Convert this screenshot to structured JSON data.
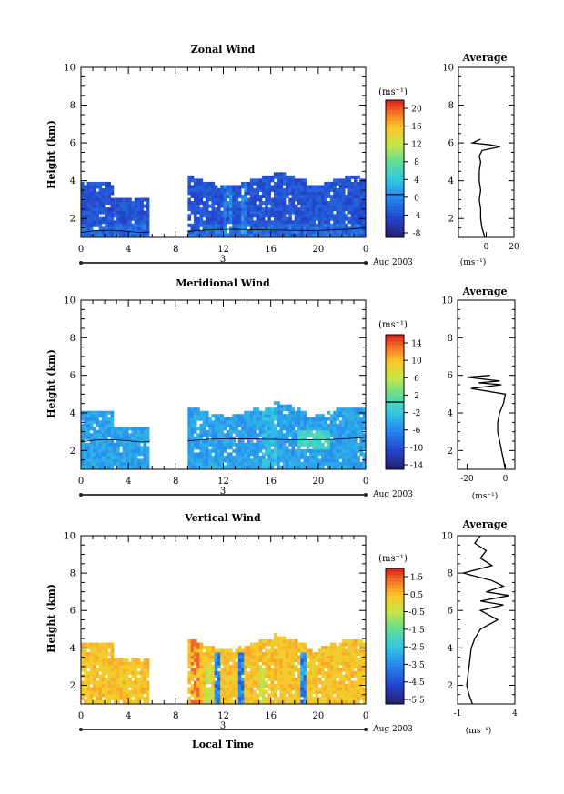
{
  "figure": {
    "x_title": "Local Time",
    "x_ticks": [
      "0",
      "4",
      "8",
      "12",
      "16",
      "20",
      "0"
    ],
    "day_label": "3",
    "date_label": "Aug 2003"
  },
  "chart_data": [
    {
      "type": "heatmap",
      "name": "zonal",
      "title": "Zonal Wind",
      "ylabel": "Height (km)",
      "unit": "(ms⁻¹)",
      "xlim": [
        0,
        24
      ],
      "ylim": [
        1,
        10
      ],
      "yticks": [
        2,
        4,
        6,
        8,
        10
      ],
      "colorbar_ticks": [
        "20",
        "16",
        "12",
        "8",
        "4",
        "0",
        "-4",
        "-8"
      ],
      "colorbar_range": [
        -10,
        22
      ],
      "contour_level": 0,
      "data_gaps_hours": [
        [
          5.8,
          8.9
        ]
      ],
      "coverage_top_km": 3.9,
      "average_profile": {
        "title": "Average",
        "xlim": [
          -20,
          20
        ],
        "xticks": [
          "0",
          "20"
        ],
        "xlabel": "(ms⁻¹)",
        "heights": [
          1.0,
          1.5,
          2.0,
          2.5,
          3.0,
          3.5,
          4.0,
          4.5,
          5.0,
          5.3,
          5.6,
          5.8,
          5.9,
          6.0,
          6.2
        ],
        "values": [
          -1,
          -3,
          -4,
          -4,
          -5,
          -4,
          -5,
          -5,
          -4,
          -5,
          -3,
          10,
          3,
          -10,
          -4
        ]
      }
    },
    {
      "type": "heatmap",
      "name": "meridional",
      "title": "Meridional Wind",
      "ylabel": "Height (km)",
      "unit": "(ms⁻¹)",
      "xlim": [
        0,
        24
      ],
      "ylim": [
        1,
        10
      ],
      "yticks": [
        2,
        4,
        6,
        8,
        10
      ],
      "colorbar_ticks": [
        "14",
        "10",
        "6",
        "2",
        "-2",
        "-6",
        "-10",
        "-14"
      ],
      "colorbar_range": [
        -16,
        16
      ],
      "contour_level": 0,
      "data_gaps_hours": [
        [
          5.8,
          8.9
        ]
      ],
      "coverage_top_km": 4.0,
      "average_profile": {
        "title": "Average",
        "xlim": [
          -25,
          5
        ],
        "xticks": [
          "-20",
          "0"
        ],
        "xlabel": "(ms⁻¹)",
        "heights": [
          1.0,
          1.5,
          2.0,
          2.5,
          3.0,
          3.5,
          4.0,
          4.5,
          5.0,
          5.3,
          5.5,
          5.6,
          5.7,
          5.9,
          6.0
        ],
        "values": [
          0,
          -1,
          -2,
          -3,
          -4,
          -4,
          -3,
          -1,
          0,
          -18,
          -2,
          -14,
          -3,
          -20,
          -8
        ]
      }
    },
    {
      "type": "heatmap",
      "name": "vertical",
      "title": "Vertical Wind",
      "ylabel": "Height (km)",
      "unit": "(ms⁻¹)",
      "xlim": [
        0,
        24
      ],
      "ylim": [
        1,
        10
      ],
      "yticks": [
        2,
        4,
        6,
        8,
        10
      ],
      "colorbar_ticks": [
        "1.5",
        "0.5",
        "-0.5",
        "-1.5",
        "-2.5",
        "-3.5",
        "-4.5",
        "-5.5"
      ],
      "colorbar_range": [
        -6.5,
        2.2
      ],
      "data_gaps_hours": [
        [
          5.8,
          8.9
        ]
      ],
      "coverage_top_km": 4.1,
      "average_profile": {
        "title": "Average",
        "xlim": [
          -1,
          4
        ],
        "xticks": [
          "-1",
          "4"
        ],
        "xlabel": "(ms⁻¹)",
        "heights": [
          1.0,
          1.5,
          2.0,
          3.0,
          4.0,
          4.5,
          5.0,
          5.5,
          6.0,
          6.3,
          6.5,
          6.8,
          7.0,
          7.3,
          7.6,
          8.0,
          8.4,
          8.8,
          9.2,
          9.6,
          10.0
        ],
        "values": [
          0.3,
          0,
          -0.2,
          0,
          0.2,
          0.5,
          1.0,
          2.5,
          1.0,
          3.0,
          1.0,
          3.5,
          1.5,
          3.0,
          2.0,
          -0.5,
          2.0,
          1.0,
          1.5,
          0.5,
          1.0
        ]
      }
    }
  ]
}
